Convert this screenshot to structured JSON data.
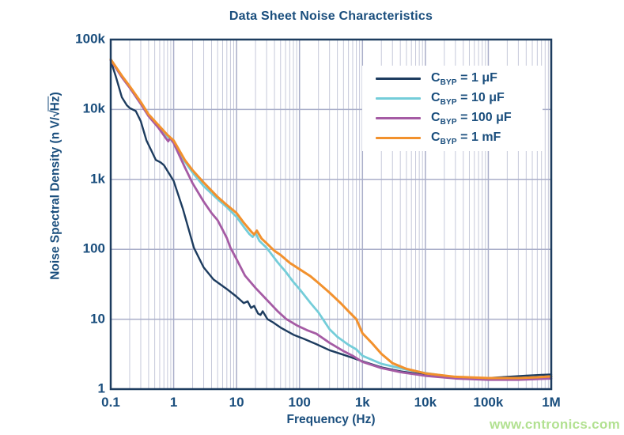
{
  "colors": {
    "text_blue": "#1a4e7d",
    "frame": "#1d3c5f",
    "grid_minor": "#c6c9da",
    "grid_major": "#a9aec9",
    "watermark_green": "#b2e191"
  },
  "y_axis_label_parts": {
    "prefix": "Noise Spectral Density (n V/",
    "sqrt": "√",
    "radicand": "Hz",
    "suffix": ")"
  },
  "legend": {
    "items": [
      {
        "c": "C",
        "sub": "BYP",
        "rest": " = 1 μF"
      },
      {
        "c": "C",
        "sub": "BYP",
        "rest": " = 10 μF"
      },
      {
        "c": "C",
        "sub": "BYP",
        "rest": " = 100 μF"
      },
      {
        "c": "C",
        "sub": "BYP",
        "rest": " = 1 mF"
      }
    ]
  },
  "watermark": {
    "text": "www.cntronics.com"
  },
  "chart_data": {
    "type": "line",
    "title": "Data Sheet Noise Characteristics",
    "xlabel": "Frequency (Hz)",
    "ylabel": "Noise Spectral Density (n V/√Hz)",
    "x_scale": "log",
    "y_scale": "log",
    "xlim": [
      0.1,
      1000000
    ],
    "ylim": [
      1,
      100000
    ],
    "grid": {
      "x_minor": true,
      "x_major": true,
      "y_minor": false,
      "y_major": true
    },
    "legend_position": "top-right",
    "x_ticks": [
      {
        "label": "0.1",
        "value": 0.1
      },
      {
        "label": "1",
        "value": 1
      },
      {
        "label": "10",
        "value": 10
      },
      {
        "label": "100",
        "value": 100
      },
      {
        "label": "1k",
        "value": 1000
      },
      {
        "label": "10k",
        "value": 10000
      },
      {
        "label": "100k",
        "value": 100000
      },
      {
        "label": "1M",
        "value": 1000000
      }
    ],
    "y_ticks": [
      {
        "label": "100k",
        "value": 100000
      },
      {
        "label": "10k",
        "value": 10000
      },
      {
        "label": "1k",
        "value": 1000
      },
      {
        "label": "100",
        "value": 100
      },
      {
        "label": "10",
        "value": 10
      },
      {
        "label": "1",
        "value": 1
      }
    ],
    "series": [
      {
        "name": "CBYP = 1 uF",
        "color": "#1d3c5f",
        "width": 2.4,
        "points": [
          [
            0.1,
            50000
          ],
          [
            0.12,
            30000
          ],
          [
            0.15,
            15000
          ],
          [
            0.18,
            11500
          ],
          [
            0.2,
            10500
          ],
          [
            0.25,
            9500
          ],
          [
            0.3,
            6800
          ],
          [
            0.37,
            3600
          ],
          [
            0.45,
            2500
          ],
          [
            0.52,
            1900
          ],
          [
            0.62,
            1750
          ],
          [
            0.7,
            1600
          ],
          [
            1,
            950
          ],
          [
            1.4,
            380
          ],
          [
            2.1,
            105
          ],
          [
            3,
            55
          ],
          [
            4.3,
            37
          ],
          [
            7,
            27
          ],
          [
            10,
            21
          ],
          [
            13,
            17
          ],
          [
            15,
            18
          ],
          [
            17,
            14.5
          ],
          [
            19,
            15.5
          ],
          [
            22,
            12
          ],
          [
            24,
            11.5
          ],
          [
            26,
            13
          ],
          [
            31,
            10
          ],
          [
            38,
            9
          ],
          [
            50,
            7.6
          ],
          [
            80,
            6
          ],
          [
            120,
            5.2
          ],
          [
            185,
            4.4
          ],
          [
            300,
            3.6
          ],
          [
            500,
            3.1
          ],
          [
            700,
            2.8
          ],
          [
            1000,
            2.5
          ],
          [
            2000,
            2.05
          ],
          [
            4000,
            1.8
          ],
          [
            10000,
            1.6
          ],
          [
            30000,
            1.46
          ],
          [
            60000,
            1.43
          ],
          [
            100000,
            1.44
          ],
          [
            200000,
            1.5
          ],
          [
            400000,
            1.56
          ],
          [
            700000,
            1.6
          ],
          [
            1000000,
            1.62
          ]
        ]
      },
      {
        "name": "CBYP = 10 uF",
        "color": "#74cdd9",
        "width": 2.8,
        "points": [
          [
            0.1,
            52000
          ],
          [
            0.15,
            30000
          ],
          [
            0.2,
            21000
          ],
          [
            0.3,
            12500
          ],
          [
            0.4,
            8300
          ],
          [
            0.57,
            5800
          ],
          [
            0.8,
            4100
          ],
          [
            1,
            3400
          ],
          [
            1.5,
            1800
          ],
          [
            2,
            1250
          ],
          [
            3,
            800
          ],
          [
            5,
            520
          ],
          [
            7,
            400
          ],
          [
            10,
            290
          ],
          [
            13,
            210
          ],
          [
            16,
            165
          ],
          [
            18,
            150
          ],
          [
            20,
            172
          ],
          [
            23,
            132
          ],
          [
            30,
            105
          ],
          [
            45,
            65
          ],
          [
            60,
            48
          ],
          [
            80,
            34
          ],
          [
            100,
            27
          ],
          [
            150,
            17
          ],
          [
            200,
            12.5
          ],
          [
            300,
            7.2
          ],
          [
            400,
            5.6
          ],
          [
            600,
            4.3
          ],
          [
            800,
            3.7
          ],
          [
            1000,
            3.0
          ],
          [
            2000,
            2.3
          ],
          [
            5000,
            1.9
          ],
          [
            10000,
            1.7
          ],
          [
            30000,
            1.48
          ],
          [
            100000,
            1.42
          ],
          [
            300000,
            1.43
          ],
          [
            600000,
            1.47
          ],
          [
            1000000,
            1.52
          ]
        ]
      },
      {
        "name": "CBYP = 100 uF",
        "color": "#a55ba4",
        "width": 2.8,
        "points": [
          [
            0.1,
            51000
          ],
          [
            0.15,
            29000
          ],
          [
            0.2,
            20500
          ],
          [
            0.3,
            12000
          ],
          [
            0.4,
            8000
          ],
          [
            0.57,
            5500
          ],
          [
            0.75,
            3900
          ],
          [
            0.82,
            3500
          ],
          [
            0.88,
            3900
          ],
          [
            1,
            3300
          ],
          [
            1.5,
            1500
          ],
          [
            2,
            880
          ],
          [
            3,
            480
          ],
          [
            4,
            330
          ],
          [
            5,
            260
          ],
          [
            6,
            190
          ],
          [
            7,
            145
          ],
          [
            8,
            105
          ],
          [
            10,
            72
          ],
          [
            13.6,
            42
          ],
          [
            20,
            28
          ],
          [
            31,
            18.5
          ],
          [
            45,
            13
          ],
          [
            62,
            10
          ],
          [
            90,
            8.2
          ],
          [
            130,
            7
          ],
          [
            185,
            6.2
          ],
          [
            300,
            4.6
          ],
          [
            500,
            3.5
          ],
          [
            700,
            3.0
          ],
          [
            1000,
            2.45
          ],
          [
            2000,
            2.0
          ],
          [
            4000,
            1.75
          ],
          [
            10000,
            1.55
          ],
          [
            30000,
            1.42
          ],
          [
            100000,
            1.36
          ],
          [
            300000,
            1.36
          ],
          [
            1000000,
            1.42
          ]
        ]
      },
      {
        "name": "CBYP = 1 mF",
        "color": "#f2912d",
        "width": 3.0,
        "points": [
          [
            0.1,
            52000
          ],
          [
            0.15,
            30500
          ],
          [
            0.2,
            21500
          ],
          [
            0.3,
            12800
          ],
          [
            0.4,
            8500
          ],
          [
            0.57,
            6000
          ],
          [
            0.8,
            4300
          ],
          [
            1,
            3600
          ],
          [
            1.5,
            1900
          ],
          [
            2,
            1350
          ],
          [
            3,
            900
          ],
          [
            5,
            560
          ],
          [
            7,
            430
          ],
          [
            10,
            330
          ],
          [
            13,
            240
          ],
          [
            17,
            180
          ],
          [
            19,
            163
          ],
          [
            21,
            185
          ],
          [
            25,
            142
          ],
          [
            30,
            122
          ],
          [
            40,
            95
          ],
          [
            50,
            83
          ],
          [
            70,
            64
          ],
          [
            100,
            52
          ],
          [
            150,
            41
          ],
          [
            200,
            33
          ],
          [
            300,
            24
          ],
          [
            450,
            17
          ],
          [
            600,
            13
          ],
          [
            800,
            10
          ],
          [
            1000,
            6.3
          ],
          [
            1400,
            4.6
          ],
          [
            2000,
            3.2
          ],
          [
            3000,
            2.35
          ],
          [
            5000,
            1.95
          ],
          [
            10000,
            1.68
          ],
          [
            30000,
            1.5
          ],
          [
            100000,
            1.44
          ],
          [
            300000,
            1.44
          ],
          [
            600000,
            1.48
          ],
          [
            1000000,
            1.52
          ]
        ]
      }
    ]
  }
}
